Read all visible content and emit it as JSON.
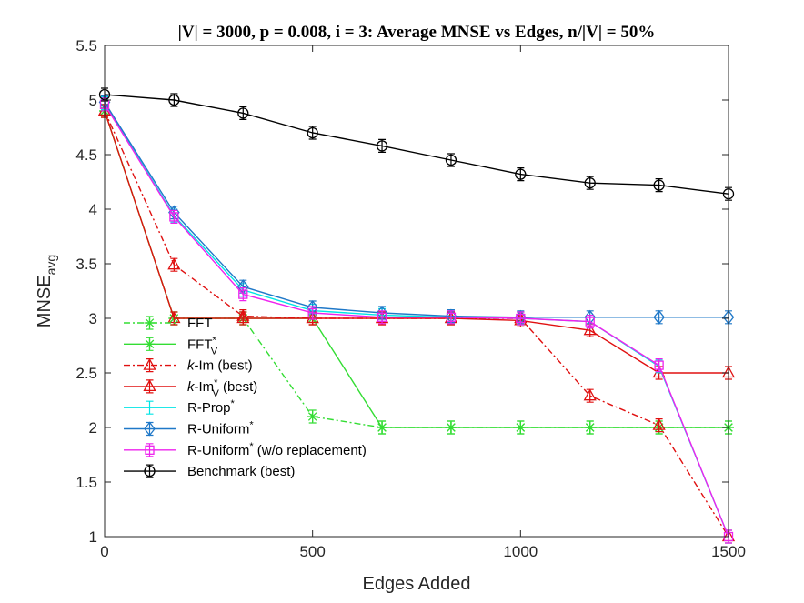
{
  "chart_data": {
    "type": "line",
    "title": "|V| = 3000, p = 0.008, i = 3: Average MNSE vs Edges, n/|V| = 50%",
    "xlabel": "Edges Added",
    "ylabel_main": "MNSE",
    "ylabel_sub": "avg",
    "xlim": [
      0,
      1500
    ],
    "ylim": [
      1,
      5.5
    ],
    "xticks": [
      0,
      500,
      1000,
      1500
    ],
    "yticks": [
      1,
      1.5,
      2,
      2.5,
      3,
      3.5,
      4,
      4.5,
      5,
      5.5
    ],
    "grid": false,
    "legend_position": "bottom-left",
    "x": [
      0,
      167,
      333,
      500,
      667,
      833,
      1000,
      1167,
      1333,
      1500
    ],
    "series": [
      {
        "name": "FFT",
        "name_sup": "",
        "name_sub": "",
        "name_prefix_italic": "",
        "name_suffix": "",
        "color": "#33dd33",
        "dash": "dashdot",
        "marker": "asterisk",
        "values": [
          4.9,
          3.0,
          3.0,
          2.1,
          2.0,
          2.0,
          2.0,
          2.0,
          2.0,
          2.0
        ]
      },
      {
        "name": "FFT",
        "name_sup": "*",
        "name_sub": "V",
        "name_prefix_italic": "",
        "name_suffix": "",
        "color": "#33dd33",
        "dash": "solid",
        "marker": "asterisk",
        "values": [
          4.9,
          3.0,
          3.0,
          3.0,
          2.0,
          2.0,
          2.0,
          2.0,
          2.0,
          2.0
        ]
      },
      {
        "name": "-Im",
        "name_sup": "",
        "name_sub": "",
        "name_prefix_italic": "k",
        "name_suffix": " (best)",
        "color": "#e01010",
        "dash": "dashdot",
        "marker": "triangle",
        "values": [
          4.9,
          3.49,
          3.02,
          3.0,
          3.0,
          3.0,
          3.0,
          2.29,
          2.02,
          1.0
        ]
      },
      {
        "name": "-Im",
        "name_sup": "*",
        "name_sub": "V",
        "name_prefix_italic": "k",
        "name_suffix": " (best)",
        "color": "#e01010",
        "dash": "solid",
        "marker": "triangle",
        "values": [
          4.9,
          3.0,
          3.0,
          3.0,
          3.0,
          3.0,
          2.98,
          2.89,
          2.5,
          2.5
        ]
      },
      {
        "name": "R-Prop",
        "name_sup": "*",
        "name_sub": "",
        "name_prefix_italic": "",
        "name_suffix": "",
        "color": "#00e5e5",
        "dash": "solid",
        "marker": "none",
        "values": [
          4.97,
          3.94,
          3.26,
          3.07,
          3.03,
          3.01,
          3.0,
          2.97,
          2.56,
          1.0
        ]
      },
      {
        "name": "R-Uniform",
        "name_sup": "*",
        "name_sub": "",
        "name_prefix_italic": "",
        "name_suffix": "",
        "color": "#1f78c8",
        "dash": "solid",
        "marker": "diamond",
        "values": [
          4.98,
          3.97,
          3.29,
          3.1,
          3.05,
          3.02,
          3.01,
          3.01,
          3.01,
          3.01
        ]
      },
      {
        "name": "R-Uniform",
        "name_sup": "*",
        "name_sub": "",
        "name_prefix_italic": "",
        "name_suffix": " (w/o replacement)",
        "color": "#ee22ee",
        "dash": "solid",
        "marker": "square",
        "values": [
          4.96,
          3.93,
          3.22,
          3.05,
          3.01,
          3.01,
          3.0,
          2.97,
          2.57,
          1.0
        ]
      },
      {
        "name": "Benchmark",
        "name_sup": "",
        "name_sub": "",
        "name_prefix_italic": "",
        "name_suffix": " (best)",
        "color": "#000000",
        "dash": "solid",
        "marker": "circle",
        "values": [
          5.05,
          5.0,
          4.88,
          4.7,
          4.58,
          4.45,
          4.32,
          4.24,
          4.22,
          4.14
        ]
      }
    ]
  }
}
